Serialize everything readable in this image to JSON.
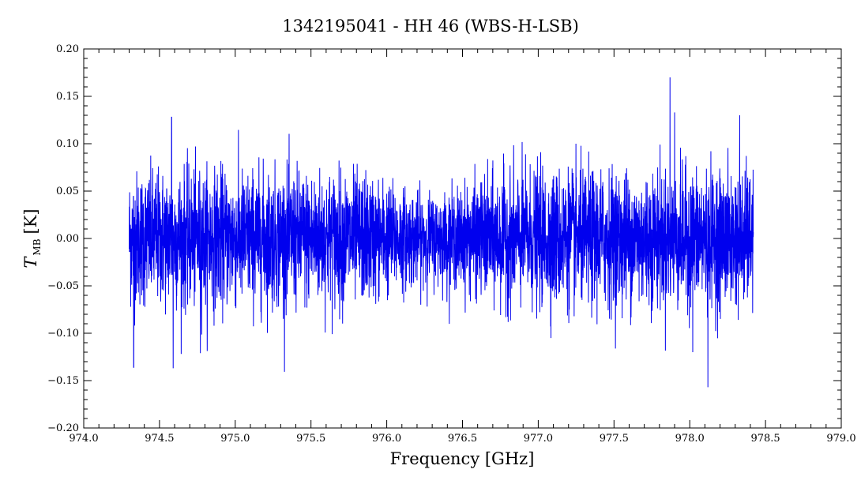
{
  "chart_data": {
    "type": "line",
    "title": "1342195041 - HH 46 (WBS-H-LSB)",
    "xlabel": "Frequency [GHz]",
    "ylabel": {
      "symbol": "T",
      "subscript": "MB",
      "unit": "[K]"
    },
    "xlim": [
      974.0,
      979.0
    ],
    "ylim": [
      -0.2,
      0.2
    ],
    "xticks": [
      "974.0",
      "974.5",
      "975.0",
      "975.5",
      "976.0",
      "976.5",
      "977.0",
      "977.5",
      "978.0",
      "978.5",
      "979.0"
    ],
    "yticks": [
      "0.20",
      "0.15",
      "0.10",
      "0.05",
      "0.00",
      "−0.05",
      "−0.10",
      "−0.15",
      "−0.20"
    ],
    "grid": false,
    "legend": "none",
    "series": [
      {
        "color": "#0000ee",
        "x_start": 974.3,
        "x_end": 978.42,
        "baseline": 0.0,
        "noise_rms": 0.035,
        "notable_extrema": [
          {
            "x": 974.33,
            "y": -0.136
          },
          {
            "x": 974.59,
            "y": -0.137
          },
          {
            "x": 974.77,
            "y": -0.121
          },
          {
            "x": 974.58,
            "y": 0.128
          },
          {
            "x": 977.87,
            "y": 0.17
          },
          {
            "x": 977.9,
            "y": 0.133
          },
          {
            "x": 978.12,
            "y": -0.157
          },
          {
            "x": 978.33,
            "y": 0.13
          },
          {
            "x": 978.02,
            "y": -0.12
          }
        ]
      }
    ]
  },
  "colors": {
    "series": "#0000ee",
    "axes": "#000000",
    "background": "#ffffff"
  }
}
